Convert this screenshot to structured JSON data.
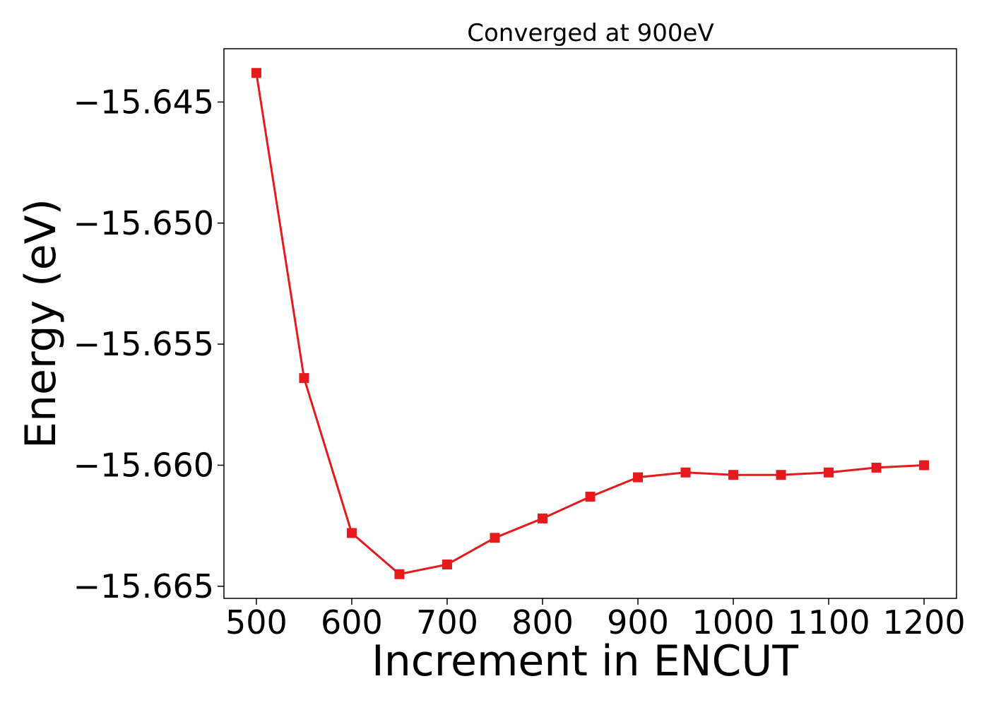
{
  "chart_data": {
    "type": "line",
    "title": "Converged at 900eV",
    "xlabel": "Increment in ENCUT",
    "ylabel": "Energy (eV)",
    "xlim": [
      466,
      1234
    ],
    "ylim": [
      -15.6655,
      -15.6428
    ],
    "x_ticks": [
      500,
      600,
      700,
      800,
      900,
      1000,
      1100,
      1200
    ],
    "x_tick_labels": [
      "500",
      "600",
      "700",
      "800",
      "900",
      "1000",
      "1100",
      "1200"
    ],
    "y_ticks": [
      -15.645,
      -15.65,
      -15.655,
      -15.66,
      -15.665
    ],
    "y_tick_labels": [
      "−15.645",
      "−15.650",
      "−15.655",
      "−15.660",
      "−15.665"
    ],
    "grid": false,
    "series": [
      {
        "color": "#e41a1c",
        "marker": "square",
        "x": [
          500,
          550,
          600,
          650,
          700,
          750,
          800,
          850,
          900,
          950,
          1000,
          1050,
          1100,
          1150,
          1200
        ],
        "y": [
          -15.6438,
          -15.6564,
          -15.6628,
          -15.6645,
          -15.6641,
          -15.663,
          -15.6622,
          -15.6613,
          -15.6605,
          -15.6603,
          -15.6604,
          -15.6604,
          -15.6603,
          -15.6601,
          -15.66
        ]
      }
    ]
  }
}
